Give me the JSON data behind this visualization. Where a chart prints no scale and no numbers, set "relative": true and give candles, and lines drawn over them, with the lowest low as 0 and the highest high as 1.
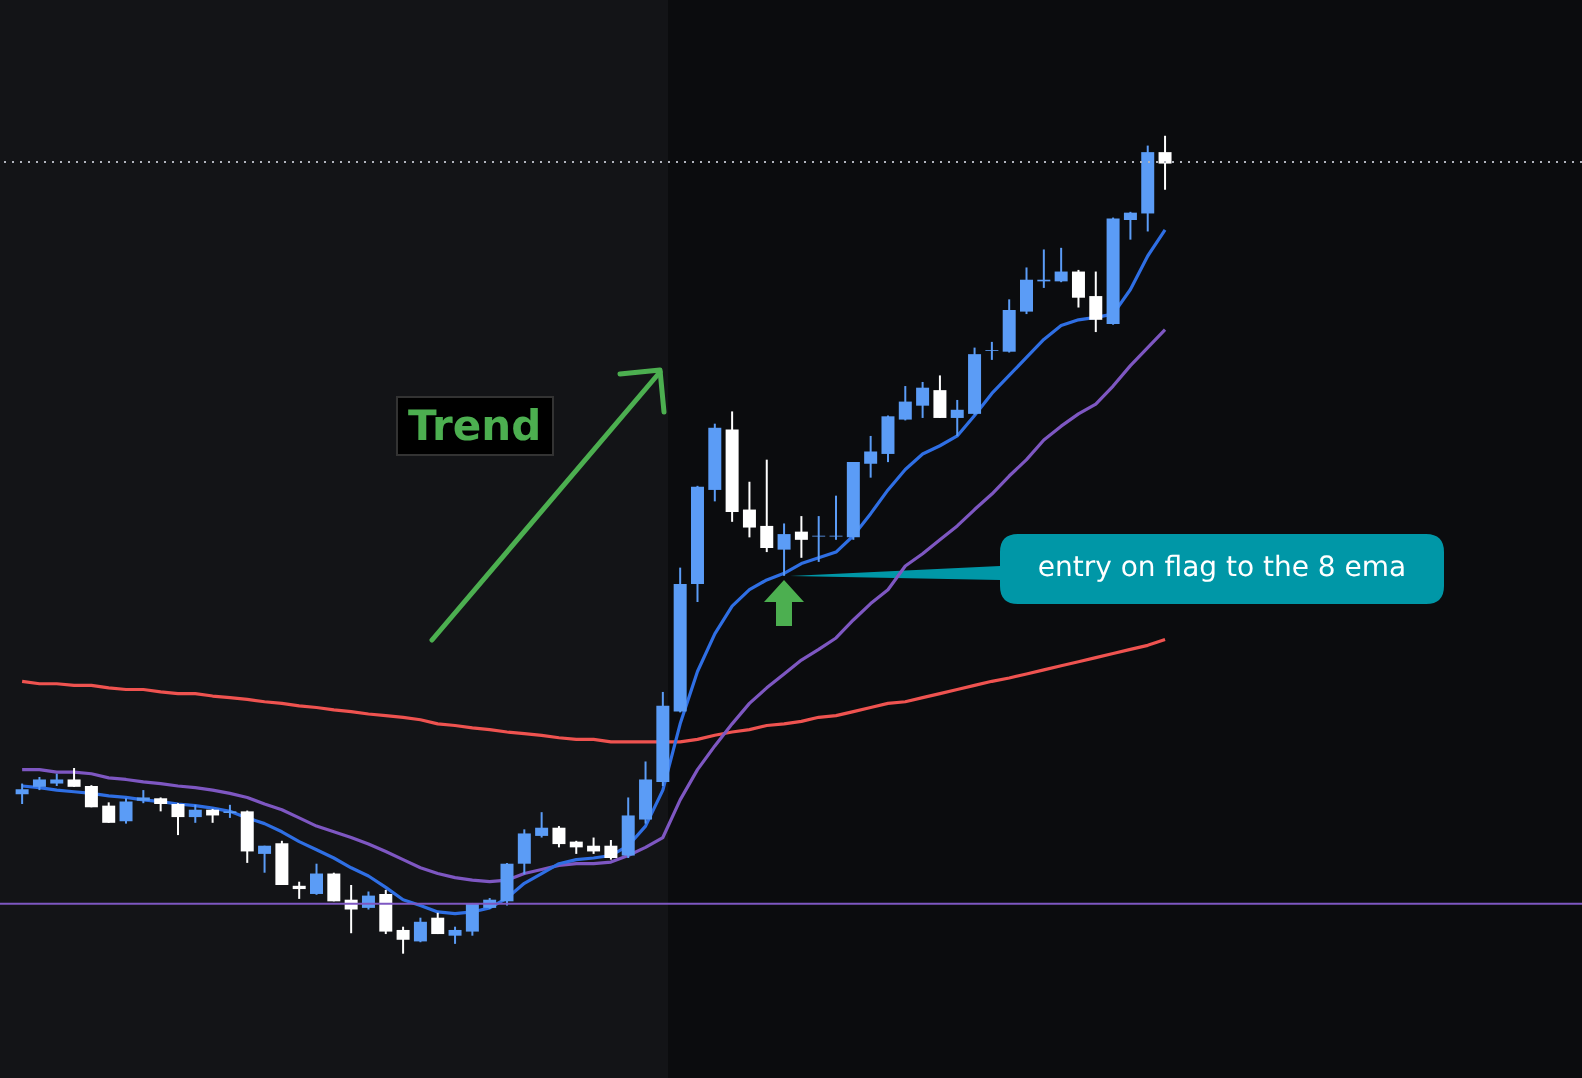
{
  "chart_data": {
    "type": "candlestick",
    "relative": true,
    "categories": [
      null,
      null,
      null,
      null,
      null,
      null,
      null,
      null,
      null,
      null,
      null,
      null,
      null,
      null,
      null,
      null,
      null,
      null,
      null,
      null,
      null,
      null,
      null,
      null,
      null,
      null,
      null,
      null,
      null,
      null,
      null,
      null,
      null,
      null,
      null,
      null,
      null,
      null,
      null,
      null,
      null,
      null,
      null,
      null,
      null,
      null,
      null,
      null,
      null,
      null,
      null,
      null,
      null,
      null,
      null,
      null,
      null,
      null,
      null,
      null,
      null,
      null,
      null,
      null,
      null,
      null,
      null
    ],
    "ohlc": [
      [
        0.195,
        0.208,
        0.183,
        0.201
      ],
      [
        0.204,
        0.216,
        0.2,
        0.213
      ],
      [
        0.208,
        0.22,
        0.205,
        0.213
      ],
      [
        0.213,
        0.227,
        0.204,
        0.204
      ],
      [
        0.205,
        0.206,
        0.179,
        0.179
      ],
      [
        0.181,
        0.185,
        0.16,
        0.16
      ],
      [
        0.162,
        0.19,
        0.159,
        0.186
      ],
      [
        0.187,
        0.2,
        0.184,
        0.191
      ],
      [
        0.19,
        0.191,
        0.174,
        0.183
      ],
      [
        0.183,
        0.184,
        0.145,
        0.167
      ],
      [
        0.167,
        0.182,
        0.16,
        0.176
      ],
      [
        0.176,
        0.177,
        0.16,
        0.169
      ],
      [
        0.172,
        0.182,
        0.166,
        0.174
      ],
      [
        0.174,
        0.175,
        0.111,
        0.125
      ],
      [
        0.122,
        0.132,
        0.099,
        0.132
      ],
      [
        0.135,
        0.138,
        0.084,
        0.084
      ],
      [
        0.083,
        0.088,
        0.067,
        0.079
      ],
      [
        0.073,
        0.11,
        0.072,
        0.098
      ],
      [
        0.098,
        0.099,
        0.064,
        0.064
      ],
      [
        0.066,
        0.084,
        0.025,
        0.054
      ],
      [
        0.056,
        0.076,
        0.054,
        0.071
      ],
      [
        0.073,
        0.078,
        0.024,
        0.027
      ],
      [
        0.029,
        0.033,
        0.0,
        0.017
      ],
      [
        0.015,
        0.044,
        0.014,
        0.039
      ],
      [
        0.044,
        0.05,
        0.024,
        0.024
      ],
      [
        0.022,
        0.033,
        0.012,
        0.029
      ],
      [
        0.027,
        0.062,
        0.022,
        0.061
      ],
      [
        0.056,
        0.068,
        0.055,
        0.066
      ],
      [
        0.064,
        0.111,
        0.059,
        0.11
      ],
      [
        0.11,
        0.152,
        0.097,
        0.147
      ],
      [
        0.144,
        0.173,
        0.142,
        0.154
      ],
      [
        0.154,
        0.156,
        0.13,
        0.134
      ],
      [
        0.137,
        0.138,
        0.122,
        0.13
      ],
      [
        0.132,
        0.142,
        0.122,
        0.125
      ],
      [
        0.132,
        0.139,
        0.115,
        0.117
      ],
      [
        0.12,
        0.191,
        0.117,
        0.169
      ],
      [
        0.164,
        0.235,
        0.159,
        0.213
      ],
      [
        0.21,
        0.32,
        0.205,
        0.303
      ],
      [
        0.296,
        0.472,
        0.295,
        0.452
      ],
      [
        0.452,
        0.572,
        0.43,
        0.571
      ],
      [
        0.567,
        0.648,
        0.553,
        0.643
      ],
      [
        0.641,
        0.663,
        0.528,
        0.54
      ],
      [
        0.543,
        0.577,
        0.509,
        0.521
      ],
      [
        0.523,
        0.604,
        0.491,
        0.496
      ],
      [
        0.494,
        0.526,
        0.462,
        0.513
      ],
      [
        0.516,
        0.535,
        0.484,
        0.506
      ],
      [
        0.51,
        0.535,
        0.479,
        0.511
      ],
      [
        0.51,
        0.56,
        0.506,
        0.511
      ],
      [
        0.509,
        0.601,
        0.506,
        0.601
      ],
      [
        0.599,
        0.633,
        0.582,
        0.614
      ],
      [
        0.611,
        0.658,
        0.601,
        0.657
      ],
      [
        0.653,
        0.694,
        0.652,
        0.675
      ],
      [
        0.67,
        0.699,
        0.655,
        0.692
      ],
      [
        0.689,
        0.707,
        0.655,
        0.655
      ],
      [
        0.655,
        0.677,
        0.633,
        0.665
      ],
      [
        0.66,
        0.741,
        0.659,
        0.733
      ],
      [
        0.737,
        0.748,
        0.726,
        0.738
      ],
      [
        0.736,
        0.8,
        0.735,
        0.787
      ],
      [
        0.785,
        0.839,
        0.782,
        0.824
      ],
      [
        0.822,
        0.861,
        0.814,
        0.824
      ],
      [
        0.822,
        0.863,
        0.821,
        0.834
      ],
      [
        0.834,
        0.836,
        0.79,
        0.802
      ],
      [
        0.804,
        0.834,
        0.76,
        0.775
      ],
      [
        0.77,
        0.9,
        0.769,
        0.899
      ],
      [
        0.897,
        0.907,
        0.873,
        0.906
      ],
      [
        0.905,
        0.988,
        0.883,
        0.98
      ],
      [
        0.98,
        1.0,
        0.934,
        0.966
      ]
    ],
    "colors": [
      "#5b9cf6",
      "#5b9cf6",
      "#5b9cf6",
      "#ffffff",
      "#ffffff",
      "#ffffff",
      "#5b9cf6",
      "#5b9cf6",
      "#ffffff",
      "#ffffff",
      "#5b9cf6",
      "#ffffff",
      "#5b9cf6",
      "#ffffff",
      "#5b9cf6",
      "#ffffff",
      "#ffffff",
      "#5b9cf6",
      "#ffffff",
      "#ffffff",
      "#5b9cf6",
      "#ffffff",
      "#ffffff",
      "#5b9cf6",
      "#ffffff",
      "#5b9cf6",
      "#5b9cf6",
      "#5b9cf6",
      "#5b9cf6",
      "#5b9cf6",
      "#5b9cf6",
      "#ffffff",
      "#ffffff",
      "#ffffff",
      "#ffffff",
      "#5b9cf6",
      "#5b9cf6",
      "#5b9cf6",
      "#5b9cf6",
      "#5b9cf6",
      "#5b9cf6",
      "#ffffff",
      "#ffffff",
      "#ffffff",
      "#5b9cf6",
      "#ffffff",
      "#5b9cf6",
      "#5b9cf6",
      "#5b9cf6",
      "#5b9cf6",
      "#5b9cf6",
      "#5b9cf6",
      "#5b9cf6",
      "#ffffff",
      "#5b9cf6",
      "#5b9cf6",
      "#5b9cf6",
      "#5b9cf6",
      "#5b9cf6",
      "#5b9cf6",
      "#5b9cf6",
      "#ffffff",
      "#ffffff",
      "#5b9cf6",
      "#5b9cf6",
      "#5b9cf6",
      "#ffffff"
    ],
    "series": [
      {
        "type": "line",
        "color": "#ef5350",
        "values": [
          0.333,
          0.33,
          0.33,
          0.328,
          0.328,
          0.325,
          0.323,
          0.323,
          0.32,
          0.318,
          0.318,
          0.315,
          0.313,
          0.311,
          0.308,
          0.306,
          0.303,
          0.301,
          0.298,
          0.296,
          0.293,
          0.291,
          0.289,
          0.286,
          0.281,
          0.279,
          0.276,
          0.274,
          0.271,
          0.269,
          0.267,
          0.264,
          0.262,
          0.262,
          0.259,
          0.259,
          0.259,
          0.259,
          0.259,
          0.262,
          0.267,
          0.271,
          0.274,
          0.279,
          0.281,
          0.284,
          0.289,
          0.291,
          0.296,
          0.301,
          0.306,
          0.308,
          0.313,
          0.318,
          0.323,
          0.328,
          0.333,
          0.337,
          0.342,
          0.347,
          0.352,
          0.357,
          0.362,
          0.367,
          0.372,
          0.377,
          0.384
        ]
      },
      {
        "type": "line",
        "color": "#7e57c2",
        "values": [
          0.225,
          0.225,
          0.222,
          0.222,
          0.22,
          0.215,
          0.213,
          0.21,
          0.208,
          0.205,
          0.203,
          0.2,
          0.196,
          0.191,
          0.183,
          0.176,
          0.166,
          0.156,
          0.149,
          0.142,
          0.134,
          0.125,
          0.115,
          0.105,
          0.098,
          0.093,
          0.09,
          0.088,
          0.09,
          0.098,
          0.103,
          0.108,
          0.11,
          0.11,
          0.112,
          0.12,
          0.13,
          0.142,
          0.188,
          0.225,
          0.254,
          0.281,
          0.306,
          0.325,
          0.342,
          0.359,
          0.372,
          0.386,
          0.408,
          0.428,
          0.445,
          0.474,
          0.489,
          0.506,
          0.523,
          0.543,
          0.562,
          0.584,
          0.604,
          0.628,
          0.645,
          0.66,
          0.672,
          0.694,
          0.719,
          0.741,
          0.763
        ]
      },
      {
        "type": "line",
        "color": "#2f6fe4",
        "values": [
          0.205,
          0.203,
          0.2,
          0.198,
          0.196,
          0.193,
          0.191,
          0.188,
          0.186,
          0.183,
          0.181,
          0.178,
          0.174,
          0.166,
          0.159,
          0.149,
          0.137,
          0.127,
          0.117,
          0.105,
          0.095,
          0.081,
          0.066,
          0.059,
          0.051,
          0.049,
          0.051,
          0.056,
          0.068,
          0.086,
          0.098,
          0.11,
          0.115,
          0.117,
          0.12,
          0.132,
          0.156,
          0.2,
          0.281,
          0.345,
          0.391,
          0.425,
          0.445,
          0.457,
          0.465,
          0.477,
          0.484,
          0.491,
          0.511,
          0.538,
          0.567,
          0.592,
          0.611,
          0.621,
          0.633,
          0.658,
          0.685,
          0.707,
          0.729,
          0.751,
          0.768,
          0.775,
          0.778,
          0.782,
          0.812,
          0.853,
          0.885
        ]
      }
    ],
    "ref_lines": [
      {
        "axis": "y",
        "value": 0.061,
        "color": "#7e57c2",
        "line_style": "solid"
      },
      {
        "axis": "y",
        "value": 0.968,
        "color": "#b2b5be",
        "line_style": "dotted"
      }
    ],
    "annotations": [
      "Trend",
      "entry on flag to the 8 ema"
    ]
  }
}
